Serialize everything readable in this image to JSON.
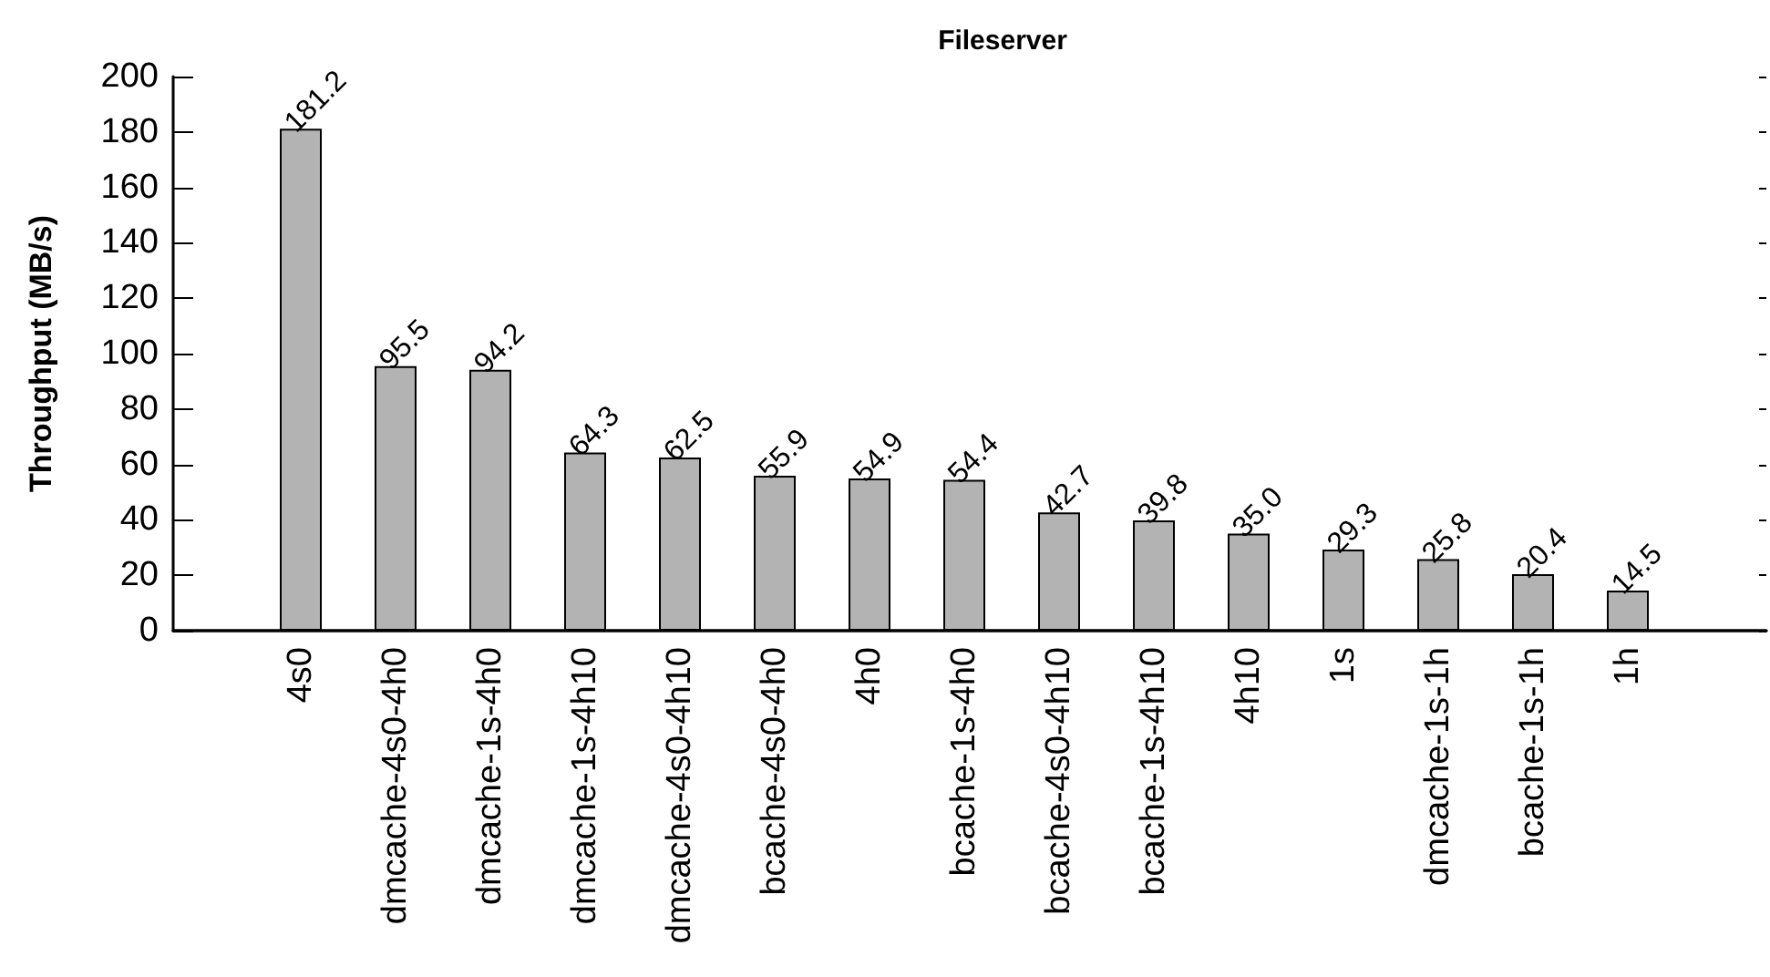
{
  "chart_data": {
    "type": "bar",
    "title": "Fileserver",
    "ylabel": "Throughput (MB/s)",
    "categories": [
      "4s0",
      "dmcache-4s0-4h0",
      "dmcache-1s-4h0",
      "dmcache-1s-4h10",
      "dmcache-4s0-4h10",
      "bcache-4s0-4h0",
      "4h0",
      "bcache-1s-4h0",
      "bcache-4s0-4h10",
      "bcache-1s-4h10",
      "4h10",
      "1s",
      "dmcache-1s-1h",
      "bcache-1s-1h",
      "1h"
    ],
    "values": [
      181.2,
      95.5,
      94.2,
      64.3,
      62.5,
      55.9,
      54.9,
      54.4,
      42.7,
      39.8,
      35.0,
      29.3,
      25.8,
      20.4,
      14.5
    ],
    "value_labels": [
      "181.2",
      "95.5",
      "94.2",
      "64.3",
      "62.5",
      "55.9",
      "54.9",
      "54.4",
      "42.7",
      "39.8",
      "35.0",
      "29.3",
      "25.8",
      "20.4",
      "14.5"
    ],
    "color": "#b3b3b3",
    "ylim": [
      0,
      200
    ],
    "yticks": [
      0,
      20,
      40,
      60,
      80,
      100,
      120,
      140,
      160,
      180,
      200
    ]
  }
}
